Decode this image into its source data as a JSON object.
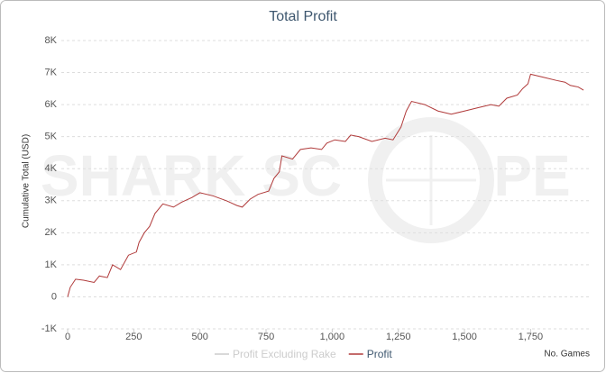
{
  "chart_data": {
    "type": "line",
    "title": "Total Profit",
    "ylabel": "Cumulative Total (USD)",
    "xlabel": "No. Games",
    "watermark": [
      "SHARK SC",
      "PE"
    ],
    "x": [
      0,
      10,
      30,
      60,
      100,
      120,
      150,
      170,
      200,
      230,
      260,
      270,
      290,
      310,
      330,
      360,
      400,
      430,
      470,
      500,
      550,
      600,
      640,
      660,
      690,
      720,
      760,
      780,
      800,
      810,
      850,
      880,
      920,
      960,
      980,
      1010,
      1050,
      1070,
      1100,
      1150,
      1200,
      1230,
      1260,
      1280,
      1300,
      1350,
      1400,
      1450,
      1500,
      1550,
      1600,
      1630,
      1660,
      1700,
      1720,
      1740,
      1750,
      1800,
      1850,
      1880,
      1900,
      1930,
      1950
    ],
    "series": [
      {
        "name": "Profit Excluding Rake",
        "color": "#cccccc",
        "visible": false,
        "values": [
          null,
          null,
          null,
          null,
          null,
          null,
          null,
          null,
          null,
          null,
          null,
          null,
          null,
          null,
          null,
          null,
          null,
          null,
          null,
          null,
          null,
          null,
          null,
          null,
          null,
          null,
          null,
          null,
          null,
          null,
          null,
          null,
          null,
          null,
          null,
          null,
          null,
          null,
          null,
          null,
          null,
          null,
          null,
          null,
          null,
          null,
          null,
          null,
          null,
          null,
          null,
          null,
          null,
          null,
          null,
          null,
          null,
          null,
          null,
          null,
          null,
          null,
          null
        ]
      },
      {
        "name": "Profit",
        "color": "#b03a3a",
        "visible": true,
        "values": [
          0,
          300,
          550,
          520,
          450,
          650,
          600,
          1000,
          850,
          1300,
          1400,
          1700,
          2000,
          2200,
          2600,
          2900,
          2800,
          2950,
          3100,
          3250,
          3150,
          3000,
          2850,
          2800,
          3050,
          3200,
          3300,
          3700,
          3900,
          4400,
          4300,
          4600,
          4650,
          4600,
          4800,
          4900,
          4850,
          5050,
          5000,
          4850,
          4950,
          4900,
          5300,
          5800,
          6100,
          6000,
          5800,
          5700,
          5800,
          5900,
          6000,
          5950,
          6200,
          6300,
          6500,
          6650,
          6950,
          6850,
          6750,
          6700,
          6600,
          6550,
          6450
        ]
      }
    ],
    "xlim": [
      0,
      1960
    ],
    "xticks": [
      0,
      250,
      500,
      750,
      {
        "value": 1000,
        "label": "1,000"
      },
      {
        "value": 1250,
        "label": "1,250"
      },
      {
        "value": 1500,
        "label": "1,500"
      },
      {
        "value": 1750,
        "label": "1,750"
      }
    ],
    "ylim": [
      -1000,
      8000
    ],
    "yticks": [
      {
        "value": -1000,
        "label": "-1K"
      },
      0,
      {
        "value": 1000,
        "label": "1K"
      },
      {
        "value": 2000,
        "label": "2K"
      },
      {
        "value": 3000,
        "label": "3K"
      },
      {
        "value": 4000,
        "label": "4K"
      },
      {
        "value": 5000,
        "label": "5K"
      },
      {
        "value": 6000,
        "label": "6K"
      },
      {
        "value": 7000,
        "label": "7K"
      },
      {
        "value": 8000,
        "label": "8K"
      }
    ],
    "grid": true
  }
}
